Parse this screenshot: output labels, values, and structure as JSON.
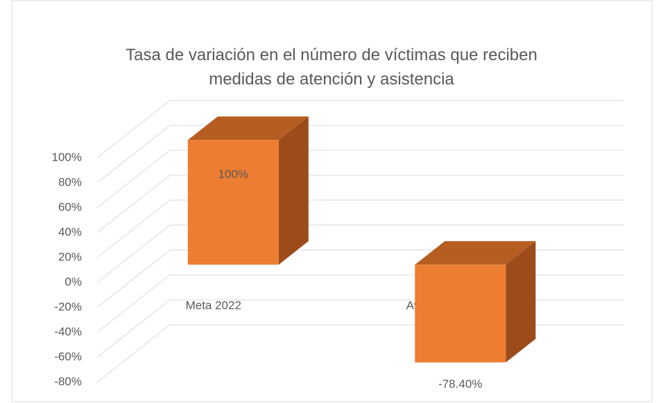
{
  "chart_data": {
    "type": "bar3d",
    "title": "Tasa de variación en el número de víctimas que reciben medidas de atención y asistencia",
    "categories": [
      "Meta 2022",
      "Avance 2022"
    ],
    "values": [
      100,
      -78.4
    ],
    "value_labels": [
      "100%",
      "-78.40%"
    ],
    "color": "#ed7d31",
    "ylim": [
      -80,
      100
    ],
    "yticks": [
      {
        "value": -80,
        "label": "-80%"
      },
      {
        "value": -60,
        "label": "-60%"
      },
      {
        "value": -40,
        "label": "-40%"
      },
      {
        "value": -20,
        "label": "-20%"
      },
      {
        "value": 0,
        "label": "0%"
      },
      {
        "value": 20,
        "label": "20%"
      },
      {
        "value": 40,
        "label": "40%"
      },
      {
        "value": 60,
        "label": "60%"
      },
      {
        "value": 80,
        "label": "80%"
      },
      {
        "value": 100,
        "label": "100%"
      }
    ],
    "grid": true
  }
}
